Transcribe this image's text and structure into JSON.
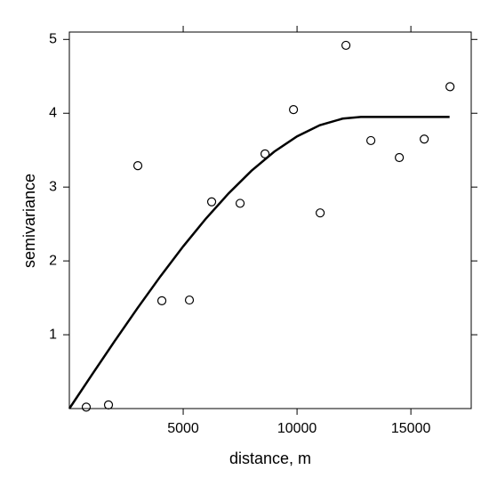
{
  "chart_data": {
    "type": "scatter",
    "x_label": "distance, m",
    "y_label": "semivariance",
    "xlim": [
      0,
      17650
    ],
    "ylim": [
      0,
      5.1
    ],
    "xticks": [
      5000,
      10000,
      15000
    ],
    "yticks": [
      1,
      2,
      3,
      4,
      5
    ],
    "series": [
      {
        "type": "scatter",
        "color": "#000000",
        "x": [
          742,
          1719,
          3008,
          4063,
          5273,
          6250,
          7500,
          8594,
          9844,
          11016,
          12148,
          13242,
          14492,
          15586,
          16719
        ],
        "values": [
          0.02,
          0.05,
          3.29,
          1.46,
          1.47,
          2.8,
          2.78,
          3.45,
          4.05,
          2.65,
          4.92,
          3.63,
          3.4,
          3.65,
          4.36
        ]
      },
      {
        "type": "line",
        "color": "#000000",
        "x": [
          0,
          1000,
          2000,
          3000,
          4000,
          5000,
          6000,
          7000,
          8000,
          9000,
          10000,
          11000,
          12000,
          12800,
          16700
        ],
        "values": [
          0,
          0.462,
          0.918,
          1.363,
          1.791,
          2.197,
          2.574,
          2.917,
          3.221,
          3.48,
          3.687,
          3.838,
          3.927,
          3.95,
          3.95
        ]
      }
    ]
  }
}
